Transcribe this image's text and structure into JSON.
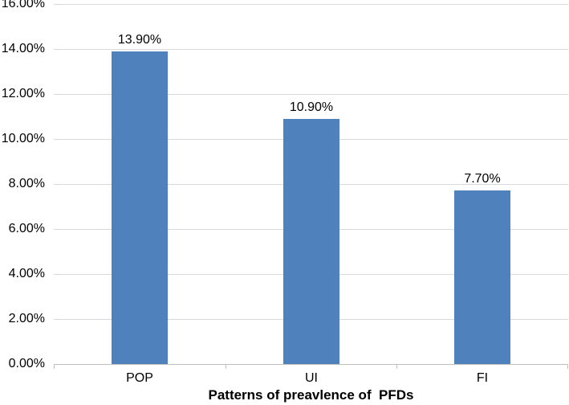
{
  "chart_data": {
    "type": "bar",
    "categories": [
      "POP",
      "UI",
      "FI"
    ],
    "values": [
      13.9,
      10.9,
      7.7
    ],
    "data_labels": [
      "13.90%",
      "10.90%",
      "7.70%"
    ],
    "title": "",
    "xlabel": "Patterns of preavlence of  PFDs",
    "ylabel": "",
    "ylim": [
      0,
      16
    ],
    "ytick_step": 2,
    "ytick_labels": [
      "0.00%",
      "2.00%",
      "4.00%",
      "6.00%",
      "8.00%",
      "10.00%",
      "12.00%",
      "14.00%",
      "16.00%"
    ],
    "grid": true,
    "legend": "none",
    "bar_color": "#4f81bd",
    "gridline_color": "#d9d9d9",
    "axis_color": "#bfbfbf",
    "text_color": "#000000",
    "background_color": "#ffffff"
  }
}
